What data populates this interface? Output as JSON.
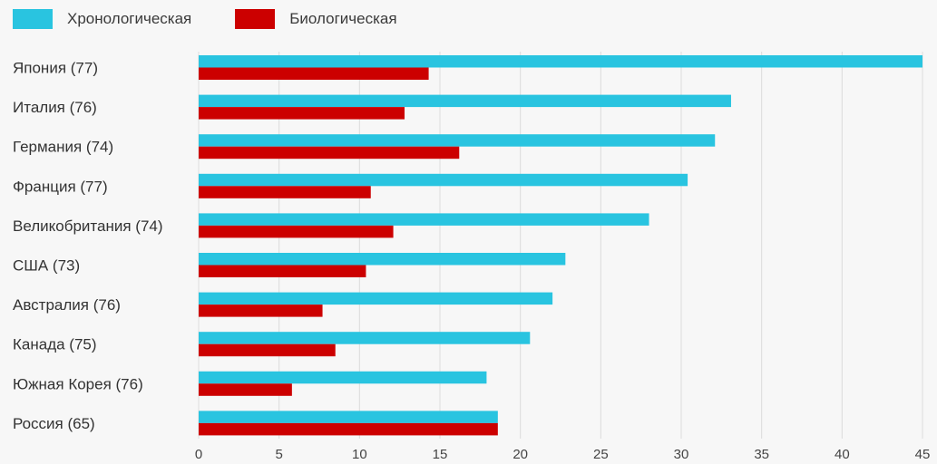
{
  "chart_data": {
    "type": "bar",
    "orientation": "horizontal",
    "categories": [
      "Япония (77)",
      "Италия (76)",
      "Германия (74)",
      "Франция (77)",
      "Великобритания (74)",
      "США (73)",
      "Австралия (76)",
      "Канада (75)",
      "Южная Корея (76)",
      "Россия (65)"
    ],
    "series": [
      {
        "name": "Хронологическая",
        "color": "#29c4e0",
        "values": [
          45,
          33.1,
          32.1,
          30.4,
          28.0,
          22.8,
          22.0,
          20.6,
          17.9,
          18.6
        ]
      },
      {
        "name": "Биологическая",
        "color": "#cc0000",
        "values": [
          14.3,
          12.8,
          16.2,
          10.7,
          12.1,
          10.4,
          7.7,
          8.5,
          5.8,
          18.6
        ]
      }
    ],
    "xlim": [
      0,
      45
    ],
    "xticks": [
      0,
      5,
      10,
      15,
      20,
      25,
      30,
      35,
      40,
      45
    ],
    "grid": true,
    "legend_position": "top-left",
    "title": "",
    "xlabel": "",
    "ylabel": ""
  }
}
